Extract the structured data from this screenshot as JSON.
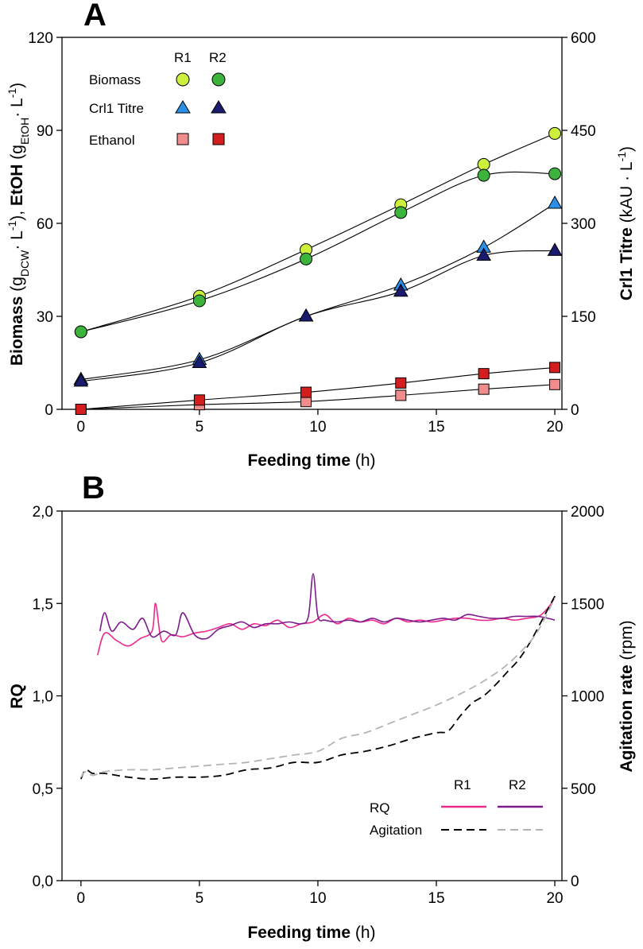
{
  "chart_data": [
    {
      "panel": "A",
      "type": "scatter",
      "panel_label": "A",
      "x": [
        0,
        5,
        9.5,
        13.5,
        17,
        20
      ],
      "xlim": [
        -0.8,
        20.3
      ],
      "xticks": [
        0,
        5,
        10,
        15,
        20
      ],
      "ylim": [
        0,
        120
      ],
      "yticks": [
        0,
        30,
        60,
        90,
        120
      ],
      "y2lim": [
        0,
        600
      ],
      "y2ticks": [
        0,
        150,
        300,
        450,
        600
      ],
      "xlabel": {
        "bold": "Feeding time",
        "normal": " (h)"
      },
      "ylabel": {
        "p1": "Biomass",
        "p2": " (g",
        "p3": "DCW",
        "p4": "· L",
        "p5": "-1",
        "p6": "), ",
        "p7": "EtOH",
        "p8": " (g",
        "p9": "EtOH",
        "p10": "· L",
        "p11": "-1",
        "p12": ")"
      },
      "y2label": {
        "bold": "Crl1 Titre",
        "normal": " (kAU · L",
        "sup": "-1",
        "close": ")"
      },
      "legend": {
        "col1": "R1",
        "col2": "R2",
        "rows": [
          "Biomass",
          "Crl1 Titre",
          "Ethanol"
        ]
      },
      "series": [
        {
          "name": "Biomass R1",
          "axis": "left",
          "marker": "circle",
          "color": "#ccf03b",
          "values": [
            25,
            36.5,
            51.5,
            66,
            79,
            89
          ]
        },
        {
          "name": "Biomass R2",
          "axis": "left",
          "marker": "circle",
          "color": "#3cb43c",
          "values": [
            25,
            35,
            48.5,
            63.5,
            75.5,
            76
          ]
        },
        {
          "name": "Crl1 Titre R1",
          "axis": "right",
          "marker": "triangle",
          "color": "#2b8fe8",
          "values": [
            48,
            80,
            150,
            200,
            261,
            332
          ]
        },
        {
          "name": "Crl1 Titre R2",
          "axis": "right",
          "marker": "triangle",
          "color": "#1a1a6e",
          "values": [
            45,
            75,
            150,
            190,
            248,
            256
          ]
        },
        {
          "name": "Ethanol R1",
          "axis": "left",
          "marker": "square",
          "color": "#f08c8c",
          "values": [
            0,
            1.5,
            2.5,
            4.5,
            6.5,
            8
          ]
        },
        {
          "name": "Ethanol R2",
          "axis": "left",
          "marker": "square",
          "color": "#d41e1e",
          "values": [
            0,
            3,
            5.5,
            8.5,
            11.5,
            13.5
          ]
        }
      ]
    },
    {
      "panel": "B",
      "type": "line",
      "panel_label": "B",
      "xlim": [
        -0.8,
        20.3
      ],
      "xticks": [
        0,
        5,
        10,
        15,
        20
      ],
      "ylim": [
        0,
        2
      ],
      "yticks": [
        "0,0",
        "0,5",
        "1,0",
        "1,5",
        "2,0"
      ],
      "y2lim": [
        0,
        2000
      ],
      "y2ticks": [
        0,
        500,
        1000,
        1500,
        2000
      ],
      "xlabel": {
        "bold": "Feeding time",
        "normal": " (h)"
      },
      "ylabel": "RQ",
      "y2label": {
        "bold": "Agitation rate",
        "normal": " (rpm)"
      },
      "legend": {
        "col1": "R1",
        "col2": "R2",
        "rows": [
          "RQ",
          "Agitation"
        ]
      },
      "series": [
        {
          "name": "RQ R1",
          "axis": "left",
          "style": "solid",
          "color": "#ec2a8c",
          "x": [
            0.7,
            1.0,
            1.5,
            2.0,
            2.5,
            3.0,
            3.15,
            3.4,
            3.8,
            4.3,
            4.8,
            5.3,
            5.8,
            6.3,
            6.8,
            7.3,
            7.8,
            8.3,
            8.8,
            9.3,
            9.8,
            10.3,
            10.8,
            11.3,
            11.8,
            12.3,
            12.8,
            13.3,
            13.8,
            14.3,
            14.8,
            15.3,
            15.8,
            16.3,
            16.8,
            17.3,
            17.8,
            18.3,
            18.8,
            19.3,
            19.6,
            19.9,
            20.0
          ],
          "values": [
            1.22,
            1.34,
            1.3,
            1.27,
            1.31,
            1.35,
            1.5,
            1.3,
            1.33,
            1.32,
            1.34,
            1.35,
            1.37,
            1.39,
            1.36,
            1.39,
            1.38,
            1.41,
            1.37,
            1.39,
            1.4,
            1.44,
            1.39,
            1.42,
            1.4,
            1.41,
            1.39,
            1.42,
            1.4,
            1.41,
            1.4,
            1.41,
            1.42,
            1.42,
            1.41,
            1.41,
            1.42,
            1.41,
            1.42,
            1.43,
            1.46,
            1.51,
            1.54
          ]
        },
        {
          "name": "RQ R2",
          "axis": "left",
          "style": "solid",
          "color": "#7d1a8c",
          "x": [
            0.8,
            1.0,
            1.3,
            1.7,
            2.2,
            2.6,
            3.0,
            3.5,
            4.0,
            4.3,
            4.8,
            5.3,
            5.8,
            6.3,
            6.8,
            7.3,
            7.8,
            8.3,
            8.8,
            9.3,
            9.6,
            9.8,
            10.0,
            10.3,
            10.8,
            11.3,
            11.8,
            12.3,
            12.8,
            13.3,
            13.8,
            14.3,
            14.8,
            15.3,
            15.8,
            16.3,
            16.8,
            17.3,
            17.8,
            18.3,
            18.8,
            19.3,
            19.7,
            20.0
          ],
          "values": [
            1.35,
            1.45,
            1.35,
            1.4,
            1.36,
            1.42,
            1.32,
            1.35,
            1.33,
            1.45,
            1.33,
            1.31,
            1.36,
            1.38,
            1.4,
            1.37,
            1.39,
            1.39,
            1.4,
            1.39,
            1.43,
            1.66,
            1.43,
            1.41,
            1.4,
            1.41,
            1.4,
            1.42,
            1.4,
            1.42,
            1.41,
            1.4,
            1.41,
            1.42,
            1.41,
            1.44,
            1.43,
            1.42,
            1.42,
            1.43,
            1.43,
            1.43,
            1.42,
            1.41
          ]
        },
        {
          "name": "Agitation R1",
          "axis": "right",
          "style": "dashed",
          "color": "#000000",
          "x": [
            0,
            0.2,
            0.5,
            1,
            2,
            3,
            4,
            5,
            6,
            7,
            8,
            9,
            10,
            11,
            12,
            13,
            14,
            15,
            15.5,
            16,
            16.5,
            17,
            17.5,
            18,
            18.5,
            19,
            19.5,
            20
          ],
          "values": [
            550,
            600,
            580,
            580,
            560,
            550,
            560,
            560,
            570,
            600,
            610,
            640,
            640,
            680,
            700,
            730,
            770,
            800,
            810,
            890,
            960,
            1000,
            1060,
            1130,
            1200,
            1300,
            1420,
            1540
          ]
        },
        {
          "name": "Agitation R2",
          "axis": "right",
          "style": "dashed",
          "color": "#b4b4b4",
          "x": [
            0,
            0.2,
            0.5,
            1,
            2,
            3,
            4,
            5,
            6,
            7,
            8,
            9,
            10,
            11,
            12,
            13,
            14,
            15,
            16,
            17,
            18,
            19,
            19.5,
            20
          ],
          "values": [
            560,
            590,
            570,
            590,
            600,
            600,
            610,
            620,
            630,
            640,
            660,
            680,
            700,
            770,
            800,
            850,
            900,
            950,
            1010,
            1080,
            1170,
            1300,
            1400,
            1530
          ]
        }
      ]
    }
  ]
}
